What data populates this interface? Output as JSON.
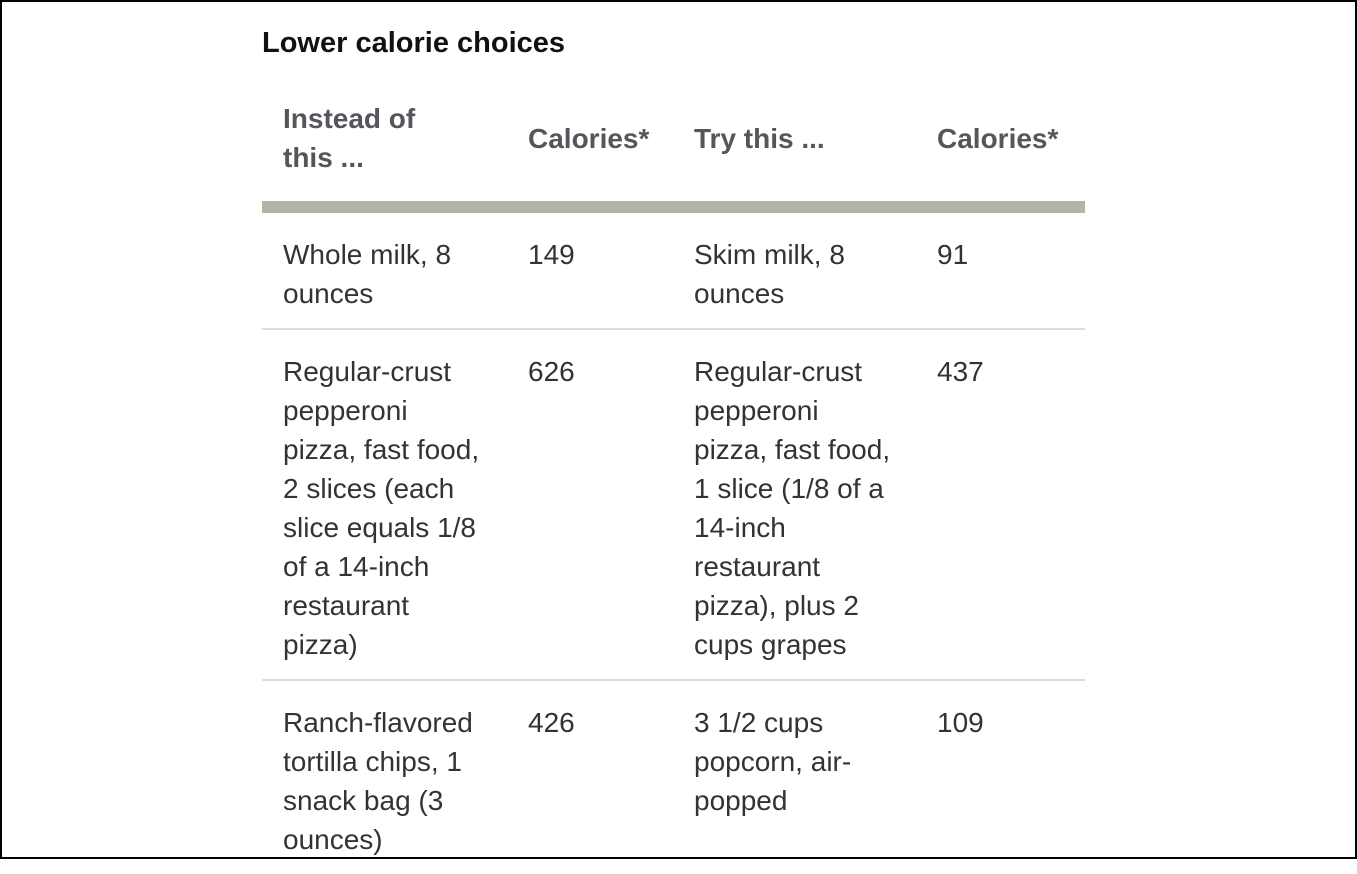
{
  "section": {
    "title": "Lower calorie choices"
  },
  "table": {
    "headers": [
      "Instead of this ...",
      "Calories*",
      "Try this ...",
      "Calories*"
    ],
    "rows": [
      {
        "instead": "Whole milk, 8 ounces",
        "instead_calories": "149",
        "try": "Skim milk, 8 ounces",
        "try_calories": "91"
      },
      {
        "instead": "Regular-crust pepperoni pizza, fast food, 2 slices (each slice equals 1/8 of a 14-inch restaurant pizza)",
        "instead_calories": "626",
        "try": "Regular-crust pepperoni pizza, fast food, 1 slice (1/8 of a 14-inch restaurant pizza), plus 2 cups grapes",
        "try_calories": "437"
      },
      {
        "instead": "Ranch-flavored tortilla chips, 1 snack bag (3 ounces)",
        "instead_calories": "426",
        "try": "3 1/2 cups popcorn, air-popped",
        "try_calories": "109"
      }
    ]
  },
  "colors": {
    "title_text": "#111111",
    "body_text": "#333333",
    "header_text": "#53565a",
    "header_bar": "#b2b4aa",
    "row_divider": "#dcdcdc",
    "page_border": "#000000",
    "background": "#ffffff"
  }
}
